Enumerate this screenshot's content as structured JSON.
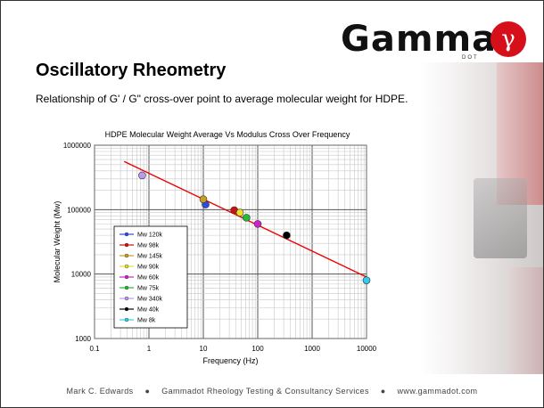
{
  "slide": {
    "title": "Oscillatory Rheometry",
    "subtitle": "Relationship of G' / G\" cross-over point to average molecular weight for HDPE."
  },
  "logo": {
    "text": "Gamma",
    "symbol": "γ",
    "subtext": "DOT",
    "accent_color": "#d6101a"
  },
  "footer": {
    "author": "Mark C. Edwards",
    "company": "Gammadot Rheology Testing & Consultancy Services",
    "website": "www.gammadot.com"
  },
  "chart_data": {
    "type": "scatter",
    "title": "HDPE Molecular Weight Average Vs Modulus Cross Over Frequency",
    "xlabel": "Frequency (Hz)",
    "ylabel": "Molecular Weight (Mw)",
    "xscale": "log",
    "yscale": "log",
    "xlim": [
      0.1,
      10000
    ],
    "ylim": [
      1000,
      1000000
    ],
    "x_ticks": [
      "0.1",
      "1",
      "10",
      "100",
      "1000",
      "10000"
    ],
    "y_ticks": [
      "1000",
      "10000",
      "100000",
      "1000000"
    ],
    "grid": true,
    "legend_position": "left",
    "series": [
      {
        "name": "Mw 120k",
        "x": 11,
        "y": 120000,
        "color": "#2b4ce0"
      },
      {
        "name": "Mw 98k",
        "x": 37,
        "y": 98000,
        "color": "#cc1111"
      },
      {
        "name": "Mw 145k",
        "x": 10,
        "y": 145000,
        "color": "#c8a020"
      },
      {
        "name": "Mw 90k",
        "x": 47,
        "y": 90000,
        "color": "#e8e020"
      },
      {
        "name": "Mw 60k",
        "x": 100,
        "y": 60000,
        "color": "#cc22cc"
      },
      {
        "name": "Mw 75k",
        "x": 62,
        "y": 75000,
        "color": "#22bb33"
      },
      {
        "name": "Mw 340k",
        "x": 0.75,
        "y": 340000,
        "color": "#bb99ee"
      },
      {
        "name": "Mw 40k",
        "x": 340,
        "y": 40000,
        "color": "#000000"
      },
      {
        "name": "Mw 8k",
        "x": 10000,
        "y": 8000,
        "color": "#33ccee"
      }
    ],
    "trendline": {
      "x": [
        0.35,
        10000
      ],
      "y": [
        560000,
        9000
      ],
      "color": "#ee0000"
    }
  }
}
